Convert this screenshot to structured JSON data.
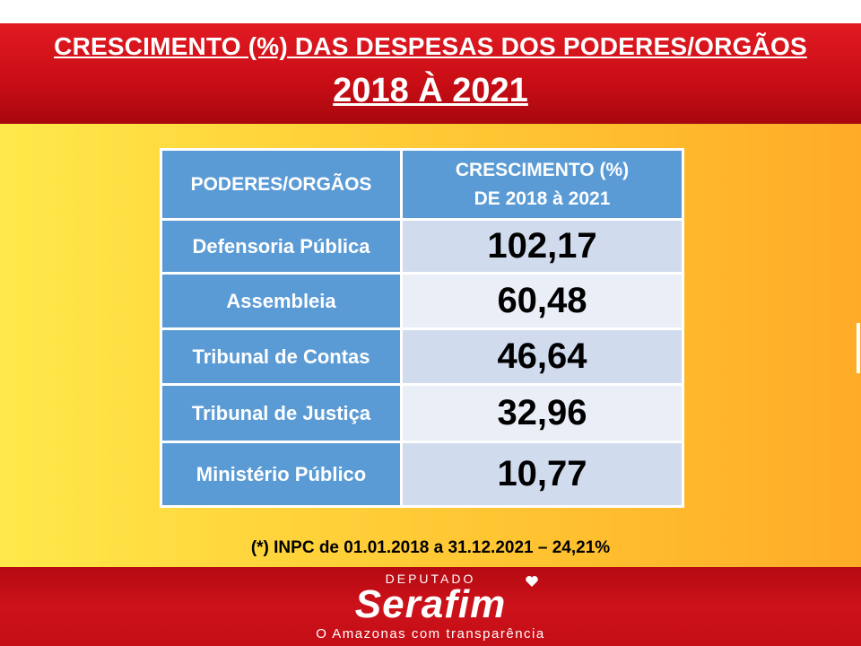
{
  "header": {
    "title_line1": "CRESCIMENTO (%) DAS DESPESAS DOS PODERES/ORGÃOS",
    "title_line2": "2018 À 2021"
  },
  "table": {
    "col1_header": "PODERES/ORGÃOS",
    "col2_header_line1": "CRESCIMENTO (%)",
    "col2_header_line2": "DE 2018 à 2021",
    "rows": [
      {
        "label": "Defensoria Pública",
        "value": "102,17"
      },
      {
        "label": "Assembleia",
        "value": "60,48"
      },
      {
        "label": "Tribunal de Contas",
        "value": "46,64"
      },
      {
        "label": "Tribunal de Justiça",
        "value": "32,96"
      },
      {
        "label": "Ministério Público",
        "value": "10,77"
      }
    ]
  },
  "footnote": "(*) INPC de 01.01.2018 a 31.12.2021 – 24,21%",
  "logo": {
    "top_text": "DEPUTADO",
    "name": "Serafim",
    "slogan": "O Amazonas com transparência"
  },
  "colors": {
    "header_red": "#c80d15",
    "table_blue": "#5b9bd5",
    "value_cell_light": "#d0dbee",
    "background_yellow": "#ffd23a"
  }
}
